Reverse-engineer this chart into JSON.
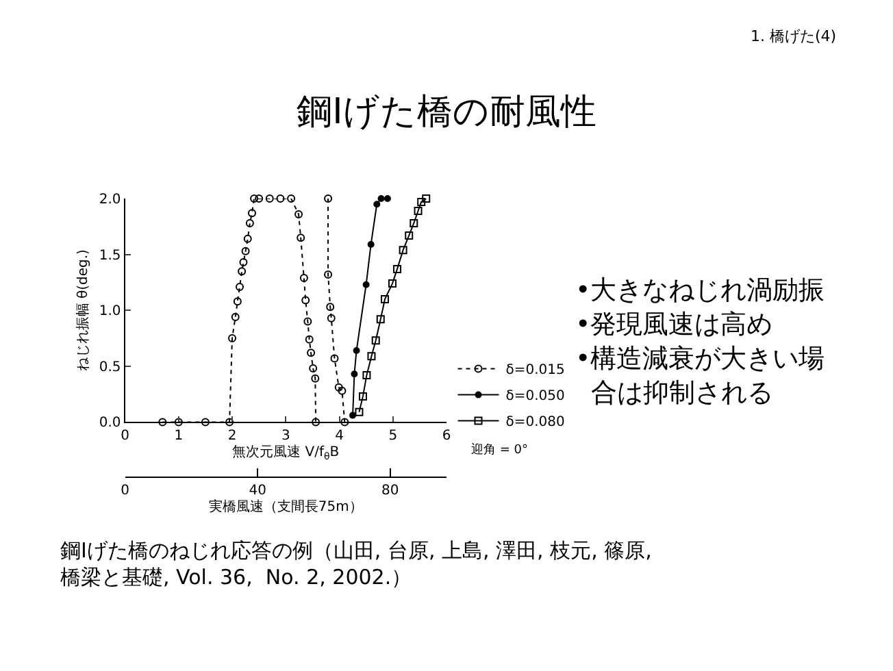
{
  "chart_data": {
    "type": "line",
    "title": "鋼Iげた橋の耐風性",
    "xlabel": "無次元風速 V/f$_{θ}$B",
    "ylabel": "ねじれ振幅 θ(deg.)",
    "x2label": "実橋風速（支間長75m）",
    "xlim": [
      0,
      6
    ],
    "xticks": [
      0,
      1,
      2,
      3,
      4,
      5,
      6
    ],
    "ylim": [
      0,
      2.0
    ],
    "yticks": [
      {
        "value": 0,
        "label": "0.0"
      },
      {
        "value": 0.5,
        "label": "0.5"
      },
      {
        "value": 1,
        "label": "1.0"
      },
      {
        "value": 1.5,
        "label": "1.5"
      },
      {
        "value": 2,
        "label": "2.0"
      }
    ],
    "x2lim": [
      0,
      97
    ],
    "x2ticks": [
      0,
      40,
      80
    ],
    "grid": false,
    "legend": "right",
    "series": [
      {
        "name": "δ=0.015",
        "color": "#000000",
        "marker": "circle",
        "line_style": "dotted",
        "x": [
          0.7,
          1.0,
          1.5,
          1.95,
          2.0,
          2.06,
          2.1,
          2.14,
          2.18,
          2.21,
          2.25,
          2.29,
          2.33,
          2.37,
          2.41,
          2.5,
          2.7,
          2.9,
          3.1,
          3.24,
          3.28,
          3.34,
          3.37,
          3.41,
          3.44,
          3.47,
          3.51,
          3.55,
          3.56,
          3.7,
          3.79,
          3.79,
          3.83,
          3.85,
          3.91,
          3.99,
          4.05,
          4.1
        ],
        "values": [
          0,
          0,
          0,
          0,
          0.75,
          0.94,
          1.08,
          1.21,
          1.35,
          1.43,
          1.53,
          1.64,
          1.78,
          1.87,
          2.0,
          2.0,
          2.0,
          2.0,
          2.0,
          1.86,
          1.65,
          1.29,
          1.09,
          0.9,
          0.74,
          0.62,
          0.48,
          0.39,
          0,
          null,
          2.0,
          1.32,
          1.03,
          0.93,
          0.57,
          0.31,
          0.28,
          0
        ]
      },
      {
        "name": "δ=0.050",
        "color": "#000000",
        "marker": "circle",
        "line_style": "solid",
        "x": [
          4.25,
          4.28,
          4.32,
          4.5,
          4.59,
          4.7,
          4.78,
          4.9
        ],
        "values": [
          0.06,
          0.43,
          0.64,
          1.23,
          1.59,
          1.95,
          2.0,
          2.0
        ]
      },
      {
        "name": "δ=0.080",
        "color": "#000000",
        "marker": "square",
        "line_style": "solid",
        "x": [
          4.37,
          4.44,
          4.51,
          4.6,
          4.68,
          4.77,
          4.85,
          4.99,
          5.08,
          5.19,
          5.3,
          5.39,
          5.47,
          5.53,
          5.62
        ],
        "values": [
          0.09,
          0.23,
          0.42,
          0.59,
          0.73,
          0.92,
          1.1,
          1.24,
          1.37,
          1.54,
          1.67,
          1.78,
          1.89,
          1.97,
          2.0
        ]
      }
    ],
    "annotations": [
      "1. 橋げた(4)",
      "迎角 = 0°",
      "•大きなねじれ渦励振",
      "•発現風速は高め",
      "•構造減衰が大きい場合は抑制される",
      "鋼Iげた橋のねじれ応答の例（山田, 台原, 上島, 澤田, 枝元, 篠原,\n橋梁と基礎, Vol. 36,  No. 2, 2002.）"
    ]
  }
}
